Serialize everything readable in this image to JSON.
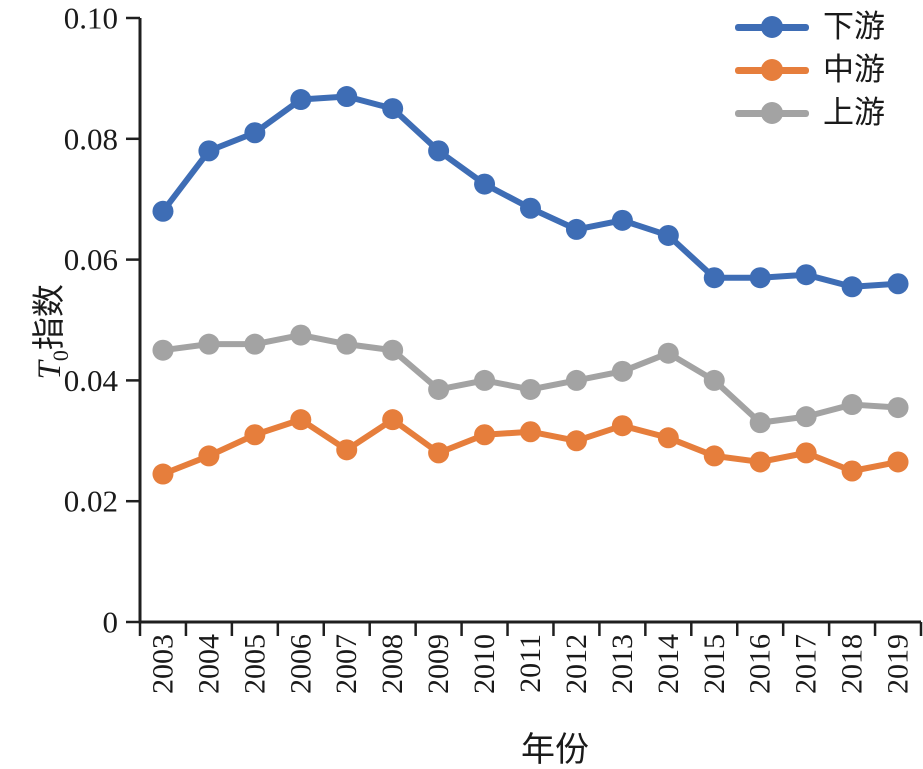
{
  "figure": {
    "background": "#ffffff",
    "axis_color": "#1f1f1f",
    "text_color": "#1a1a1a"
  },
  "chart_data": {
    "type": "line",
    "title": "",
    "xlabel": "年份",
    "ylabel_italic": "T",
    "ylabel_sub": "0",
    "ylabel_text": "指数",
    "x": [
      2003,
      2004,
      2005,
      2006,
      2007,
      2008,
      2009,
      2010,
      2011,
      2012,
      2013,
      2014,
      2015,
      2016,
      2017,
      2018,
      2019
    ],
    "ylim": [
      0,
      0.1
    ],
    "ytick_values": [
      0,
      0.02,
      0.04,
      0.06,
      0.08,
      0.1
    ],
    "ytick_labels": [
      "0",
      "0.02",
      "0.04",
      "0.06",
      "0.08",
      "0.10"
    ],
    "grid": false,
    "legend_position": "top-right",
    "marker": "circle",
    "series": [
      {
        "name": "下游",
        "color": "#3E6DB5",
        "values": [
          0.068,
          0.078,
          0.081,
          0.0865,
          0.087,
          0.085,
          0.078,
          0.0725,
          0.0685,
          0.065,
          0.0665,
          0.064,
          0.057,
          0.057,
          0.0575,
          0.0555,
          0.056
        ]
      },
      {
        "name": "中游",
        "color": "#E67E3C",
        "values": [
          0.0245,
          0.0275,
          0.031,
          0.0335,
          0.0285,
          0.0335,
          0.028,
          0.031,
          0.0315,
          0.03,
          0.0325,
          0.0305,
          0.0275,
          0.0265,
          0.028,
          0.025,
          0.0265
        ]
      },
      {
        "name": "上游",
        "color": "#A3A3A3",
        "values": [
          0.045,
          0.046,
          0.046,
          0.0475,
          0.046,
          0.045,
          0.0385,
          0.04,
          0.0385,
          0.04,
          0.0415,
          0.0445,
          0.04,
          0.033,
          0.034,
          0.036,
          0.0355
        ]
      }
    ]
  }
}
